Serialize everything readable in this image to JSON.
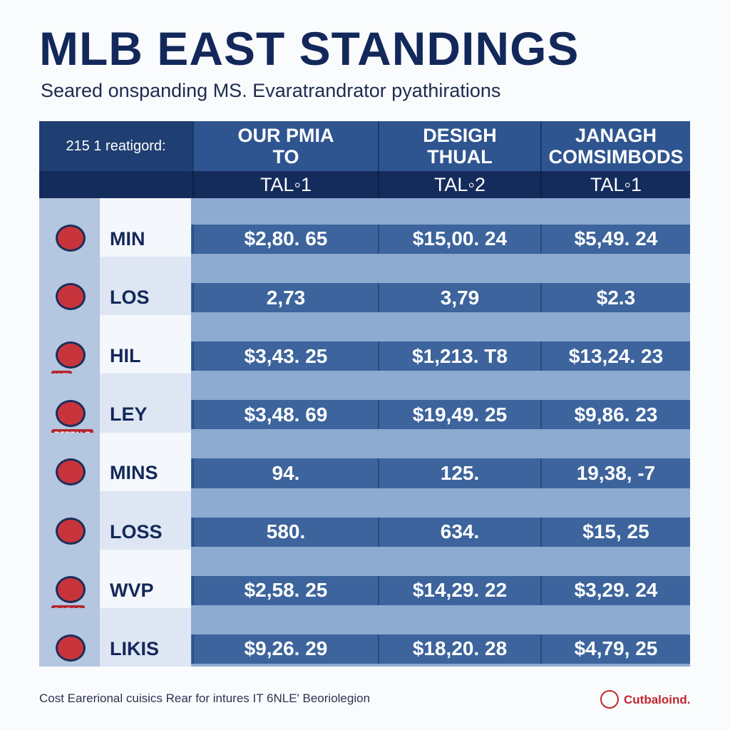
{
  "header": {
    "title": "MLB EAST STANDINGS",
    "subtitle": "Seared onspanding MS. Evaratrandrator pyathirations"
  },
  "table": {
    "corner": "215 1 reatigord:",
    "columns": [
      {
        "title": "OUR PMIA TO",
        "sub": "TAL◦1"
      },
      {
        "title": "DESIGH THUAL",
        "sub": "TAL◦2"
      },
      {
        "title": "JANAGH COMSIMBODS",
        "sub": "TAL◦1"
      }
    ],
    "rows": [
      {
        "team": "MIN",
        "cells": [
          "$2,80. 65",
          "$15,00. 24",
          "$5,49. 24"
        ]
      },
      {
        "team": "LOS",
        "cells": [
          "2,73",
          "3,79",
          "$2.3"
        ]
      },
      {
        "team": "HIL",
        "badge": "IOTI",
        "cells": [
          "$3,43. 25",
          "$1,213. T8",
          "$13,24. 23"
        ]
      },
      {
        "team": "LEY",
        "badge": "BEPTALS",
        "cells": [
          "$3,48. 69",
          "$19,49. 25",
          "$9,86. 23"
        ]
      },
      {
        "team": "MINS",
        "cells": [
          "94.",
          "125.",
          "19,38, -7"
        ]
      },
      {
        "team": "LOSS",
        "cells": [
          "580.",
          "634.",
          "$15, 25"
        ]
      },
      {
        "team": "WVP",
        "badge": "RAEAS",
        "cells": [
          "$2,58. 25",
          "$14,29. 22",
          "$3,29. 24"
        ]
      },
      {
        "team": "LIKIS",
        "cells": [
          "$9,26. 29",
          "$18,20. 28",
          "$4,79, 25"
        ]
      }
    ]
  },
  "footer": {
    "note": "Cost Earerional cuisics Rear for intures IT 6NLE' Beoriolegion",
    "brand": "Cutbaloind."
  }
}
